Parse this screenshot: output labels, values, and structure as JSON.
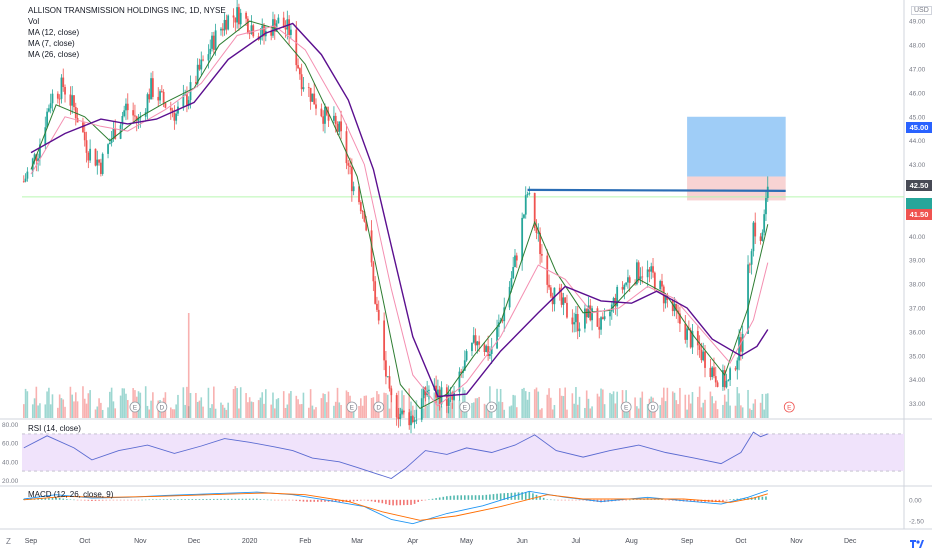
{
  "legend": {
    "title": "ALLISON TRANSMISSION HOLDINGS INC, 1D, NYSE",
    "vol": "Vol",
    "ma12": "MA (12, close)",
    "ma7": "MA (7, close)",
    "ma26": "MA (26, close)"
  },
  "currency": "USD",
  "rsi_title": "RSI (14, close)",
  "macd_title": "MACD (12, 26, close, 9)",
  "scale_button": "Z",
  "tv_logo": "tv-logo-icon",
  "price_tags": {
    "target": "45.00",
    "entry": "42.50",
    "stop": "41.50"
  },
  "colors": {
    "up": "#26a69a",
    "down": "#ef5350",
    "ma12": "#f48fb1",
    "ma7": "#2e7d32",
    "ma26": "#5b0f8f",
    "resistance": "#2a6db5",
    "target_zone": "#9fcdf7",
    "stop_zone": "#f8d3d3",
    "rsi_band": "#f0e3fb",
    "current_price": "#b9f6b1",
    "tag_blue": "#2962ff",
    "tag_red": "#ef5350",
    "tag_dark": "#474a55"
  },
  "chart_data": {
    "type": "candlestick",
    "x_axis": {
      "tick_labels": [
        "Sep",
        "Oct",
        "Nov",
        "Dec",
        "2020",
        "Feb",
        "Mar",
        "Apr",
        "May",
        "Jun",
        "Jul",
        "Aug",
        "Sep",
        "Oct",
        "Nov",
        "Dec"
      ],
      "range": [
        "2019-08-27",
        "2020-12-31"
      ]
    },
    "price_axis": {
      "ticks": [
        "49.00",
        "48.00",
        "47.00",
        "46.00",
        "45.00",
        "44.00",
        "43.00",
        "42.00",
        "41.00",
        "40.00",
        "39.00",
        "38.00",
        "37.00",
        "36.00",
        "35.00",
        "34.00",
        "33.00"
      ],
      "ylim": [
        32.4,
        49.8
      ]
    },
    "price_path": [
      [
        "2019-08-28",
        42.3
      ],
      [
        "2019-09-05",
        43.6
      ],
      [
        "2019-09-12",
        45.8
      ],
      [
        "2019-09-19",
        46.3
      ],
      [
        "2019-09-26",
        45.2
      ],
      [
        "2019-10-03",
        43.6
      ],
      [
        "2019-10-10",
        43.0
      ],
      [
        "2019-10-17",
        44.3
      ],
      [
        "2019-10-24",
        45.4
      ],
      [
        "2019-10-31",
        44.8
      ],
      [
        "2019-11-07",
        46.2
      ],
      [
        "2019-11-14",
        45.6
      ],
      [
        "2019-11-21",
        45.1
      ],
      [
        "2019-11-28",
        45.9
      ],
      [
        "2019-12-05",
        47.1
      ],
      [
        "2019-12-12",
        48.2
      ],
      [
        "2019-12-19",
        49.1
      ],
      [
        "2019-12-26",
        49.3
      ],
      [
        "2020-01-02",
        48.8
      ],
      [
        "2020-01-09",
        48.4
      ],
      [
        "2020-01-16",
        49.0
      ],
      [
        "2020-01-23",
        48.6
      ],
      [
        "2020-01-30",
        46.6
      ],
      [
        "2020-02-06",
        45.7
      ],
      [
        "2020-02-13",
        44.9
      ],
      [
        "2020-02-20",
        44.4
      ],
      [
        "2020-02-27",
        42.3
      ],
      [
        "2020-03-05",
        41.0
      ],
      [
        "2020-03-12",
        36.8
      ],
      [
        "2020-03-19",
        33.2
      ],
      [
        "2020-03-26",
        32.5
      ],
      [
        "2020-04-02",
        32.4
      ],
      [
        "2020-04-09",
        33.6
      ],
      [
        "2020-04-16",
        33.4
      ],
      [
        "2020-04-23",
        33.1
      ],
      [
        "2020-04-30",
        34.6
      ],
      [
        "2020-05-07",
        35.8
      ],
      [
        "2020-05-14",
        35.1
      ],
      [
        "2020-05-21",
        36.7
      ],
      [
        "2020-05-28",
        38.9
      ],
      [
        "2020-06-04",
        41.8
      ],
      [
        "2020-06-11",
        39.5
      ],
      [
        "2020-06-18",
        37.6
      ],
      [
        "2020-06-25",
        36.9
      ],
      [
        "2020-07-02",
        36.4
      ],
      [
        "2020-07-09",
        36.8
      ],
      [
        "2020-07-16",
        36.1
      ],
      [
        "2020-07-23",
        37.4
      ],
      [
        "2020-07-30",
        38.2
      ],
      [
        "2020-08-06",
        38.6
      ],
      [
        "2020-08-13",
        38.3
      ],
      [
        "2020-08-20",
        37.4
      ],
      [
        "2020-08-27",
        36.5
      ],
      [
        "2020-09-03",
        35.7
      ],
      [
        "2020-09-10",
        35.0
      ],
      [
        "2020-09-17",
        34.2
      ],
      [
        "2020-09-24",
        33.8
      ],
      [
        "2020-10-01",
        35.6
      ],
      [
        "2020-10-08",
        40.5
      ],
      [
        "2020-10-12",
        39.6
      ],
      [
        "2020-10-15",
        41.3
      ],
      [
        "2020-10-16",
        42.2
      ]
    ],
    "series": [
      {
        "name": "MA (7, close)",
        "path": [
          [
            "2019-09-01",
            42.8
          ],
          [
            "2019-09-15",
            45.5
          ],
          [
            "2019-10-01",
            45.0
          ],
          [
            "2019-10-15",
            44.0
          ],
          [
            "2019-11-01",
            45.0
          ],
          [
            "2019-11-15",
            45.6
          ],
          [
            "2019-12-01",
            46.2
          ],
          [
            "2019-12-15",
            48.0
          ],
          [
            "2020-01-01",
            49.0
          ],
          [
            "2020-01-15",
            48.7
          ],
          [
            "2020-02-01",
            47.2
          ],
          [
            "2020-02-15",
            45.0
          ],
          [
            "2020-03-01",
            42.5
          ],
          [
            "2020-03-15",
            37.5
          ],
          [
            "2020-03-25",
            33.8
          ],
          [
            "2020-04-05",
            32.8
          ],
          [
            "2020-04-20",
            33.4
          ],
          [
            "2020-05-05",
            35.0
          ],
          [
            "2020-05-20",
            36.4
          ],
          [
            "2020-06-08",
            40.6
          ],
          [
            "2020-06-20",
            38.5
          ],
          [
            "2020-07-05",
            36.8
          ],
          [
            "2020-07-20",
            36.9
          ],
          [
            "2020-08-05",
            38.2
          ],
          [
            "2020-08-20",
            37.6
          ],
          [
            "2020-09-05",
            35.8
          ],
          [
            "2020-09-22",
            34.2
          ],
          [
            "2020-10-05",
            37.0
          ],
          [
            "2020-10-16",
            40.5
          ]
        ]
      },
      {
        "name": "MA (12, close)",
        "path": [
          [
            "2019-09-01",
            42.6
          ],
          [
            "2019-09-20",
            45.0
          ],
          [
            "2019-10-10",
            44.6
          ],
          [
            "2019-10-25",
            44.4
          ],
          [
            "2019-11-15",
            45.3
          ],
          [
            "2019-12-05",
            46.4
          ],
          [
            "2019-12-25",
            48.4
          ],
          [
            "2020-01-15",
            48.8
          ],
          [
            "2020-02-01",
            47.8
          ],
          [
            "2020-02-20",
            45.3
          ],
          [
            "2020-03-05",
            43.0
          ],
          [
            "2020-03-20",
            37.8
          ],
          [
            "2020-04-01",
            34.2
          ],
          [
            "2020-04-15",
            32.9
          ],
          [
            "2020-05-01",
            33.9
          ],
          [
            "2020-05-20",
            35.8
          ],
          [
            "2020-06-10",
            38.8
          ],
          [
            "2020-06-25",
            38.2
          ],
          [
            "2020-07-10",
            36.8
          ],
          [
            "2020-07-25",
            37.0
          ],
          [
            "2020-08-10",
            37.9
          ],
          [
            "2020-08-25",
            37.4
          ],
          [
            "2020-09-10",
            36.0
          ],
          [
            "2020-09-25",
            34.7
          ],
          [
            "2020-10-08",
            36.5
          ],
          [
            "2020-10-16",
            38.9
          ]
        ]
      },
      {
        "name": "MA (26, close)",
        "path": [
          [
            "2019-09-01",
            43.5
          ],
          [
            "2019-09-20",
            44.3
          ],
          [
            "2019-10-10",
            44.9
          ],
          [
            "2019-10-25",
            44.7
          ],
          [
            "2019-11-10",
            44.9
          ],
          [
            "2019-12-01",
            45.6
          ],
          [
            "2019-12-20",
            47.4
          ],
          [
            "2020-01-10",
            48.5
          ],
          [
            "2020-01-25",
            48.9
          ],
          [
            "2020-02-10",
            47.6
          ],
          [
            "2020-02-25",
            45.7
          ],
          [
            "2020-03-10",
            42.8
          ],
          [
            "2020-03-20",
            39.6
          ],
          [
            "2020-04-01",
            35.8
          ],
          [
            "2020-04-15",
            33.3
          ],
          [
            "2020-05-01",
            33.4
          ],
          [
            "2020-05-20",
            35.2
          ],
          [
            "2020-06-10",
            36.8
          ],
          [
            "2020-06-25",
            37.9
          ],
          [
            "2020-07-15",
            37.3
          ],
          [
            "2020-08-01",
            37.2
          ],
          [
            "2020-08-15",
            37.7
          ],
          [
            "2020-09-01",
            37.0
          ],
          [
            "2020-09-15",
            35.7
          ],
          [
            "2020-10-01",
            35.0
          ],
          [
            "2020-10-10",
            35.4
          ],
          [
            "2020-10-16",
            36.1
          ]
        ]
      }
    ],
    "volume_spike_date": "2019-11-28",
    "rsi": {
      "ticks": [
        "80.00",
        "60.00",
        "40.00",
        "20.00"
      ],
      "band": [
        30,
        70
      ],
      "ylim": [
        15,
        85
      ],
      "path": [
        [
          "2019-08-28",
          55
        ],
        [
          "2019-09-10",
          68
        ],
        [
          "2019-09-25",
          55
        ],
        [
          "2019-10-05",
          42
        ],
        [
          "2019-10-20",
          52
        ],
        [
          "2019-11-05",
          58
        ],
        [
          "2019-11-20",
          49
        ],
        [
          "2019-12-05",
          57
        ],
        [
          "2019-12-18",
          65
        ],
        [
          "2020-01-01",
          61
        ],
        [
          "2020-01-15",
          56
        ],
        [
          "2020-01-25",
          52
        ],
        [
          "2020-02-05",
          44
        ],
        [
          "2020-02-20",
          40
        ],
        [
          "2020-03-01",
          34
        ],
        [
          "2020-03-12",
          27
        ],
        [
          "2020-03-20",
          22
        ],
        [
          "2020-03-28",
          33
        ],
        [
          "2020-04-08",
          52
        ],
        [
          "2020-04-20",
          48
        ],
        [
          "2020-05-01",
          55
        ],
        [
          "2020-05-15",
          50
        ],
        [
          "2020-05-28",
          58
        ],
        [
          "2020-06-08",
          69
        ],
        [
          "2020-06-20",
          52
        ],
        [
          "2020-07-05",
          45
        ],
        [
          "2020-07-20",
          52
        ],
        [
          "2020-08-05",
          58
        ],
        [
          "2020-08-20",
          50
        ],
        [
          "2020-09-05",
          44
        ],
        [
          "2020-09-20",
          38
        ],
        [
          "2020-10-01",
          50
        ],
        [
          "2020-10-08",
          72
        ],
        [
          "2020-10-12",
          67
        ],
        [
          "2020-10-16",
          70
        ]
      ]
    },
    "macd": {
      "ticks": [
        "0.00",
        "-2.50"
      ],
      "ylim": [
        -3.3,
        1.5
      ],
      "macd_path": [
        [
          "2019-08-28",
          0.1
        ],
        [
          "2019-09-15",
          0.6
        ],
        [
          "2019-10-05",
          0.2
        ],
        [
          "2019-10-25",
          0.3
        ],
        [
          "2019-11-15",
          0.5
        ],
        [
          "2019-12-10",
          0.7
        ],
        [
          "2020-01-05",
          0.9
        ],
        [
          "2020-01-25",
          0.6
        ],
        [
          "2020-02-15",
          -0.1
        ],
        [
          "2020-03-05",
          -0.8
        ],
        [
          "2020-03-20",
          -2.3
        ],
        [
          "2020-04-01",
          -2.8
        ],
        [
          "2020-04-20",
          -1.6
        ],
        [
          "2020-05-10",
          -0.7
        ],
        [
          "2020-06-05",
          1.0
        ],
        [
          "2020-06-25",
          0.3
        ],
        [
          "2020-07-15",
          -0.2
        ],
        [
          "2020-08-10",
          0.3
        ],
        [
          "2020-08-30",
          -0.1
        ],
        [
          "2020-09-20",
          -0.5
        ],
        [
          "2020-10-05",
          0.3
        ],
        [
          "2020-10-16",
          1.1
        ]
      ],
      "signal_path": [
        [
          "2019-08-28",
          0.0
        ],
        [
          "2019-09-20",
          0.4
        ],
        [
          "2019-10-15",
          0.3
        ],
        [
          "2019-11-10",
          0.4
        ],
        [
          "2019-12-10",
          0.6
        ],
        [
          "2020-01-10",
          0.8
        ],
        [
          "2020-02-01",
          0.6
        ],
        [
          "2020-02-25",
          -0.2
        ],
        [
          "2020-03-15",
          -1.4
        ],
        [
          "2020-04-05",
          -2.4
        ],
        [
          "2020-04-25",
          -1.9
        ],
        [
          "2020-05-20",
          -0.8
        ],
        [
          "2020-06-15",
          0.6
        ],
        [
          "2020-07-05",
          0.1
        ],
        [
          "2020-08-01",
          0.1
        ],
        [
          "2020-08-30",
          0.1
        ],
        [
          "2020-09-25",
          -0.3
        ],
        [
          "2020-10-08",
          0.2
        ],
        [
          "2020-10-16",
          0.7
        ]
      ]
    },
    "annotations": {
      "resistance": {
        "price": 41.9,
        "from": "2020-06-04",
        "to": "2020-10-26"
      },
      "target_zone": {
        "from": "2020-09-01",
        "to": "2020-10-26",
        "low": 42.5,
        "high": 45.0
      },
      "stop_zone": {
        "from": "2020-09-01",
        "to": "2020-10-26",
        "low": 41.5,
        "high": 42.5
      },
      "current_price": 41.65,
      "event_markers": [
        {
          "date": "2019-10-29",
          "label": "E"
        },
        {
          "date": "2019-11-13",
          "label": "D"
        },
        {
          "date": "2020-02-27",
          "label": "E"
        },
        {
          "date": "2020-03-13",
          "label": "D"
        },
        {
          "date": "2020-04-30",
          "label": "E"
        },
        {
          "date": "2020-05-15",
          "label": "D"
        },
        {
          "date": "2020-07-29",
          "label": "E"
        },
        {
          "date": "2020-08-13",
          "label": "D"
        },
        {
          "date": "2020-10-28",
          "label": "E"
        }
      ]
    }
  }
}
